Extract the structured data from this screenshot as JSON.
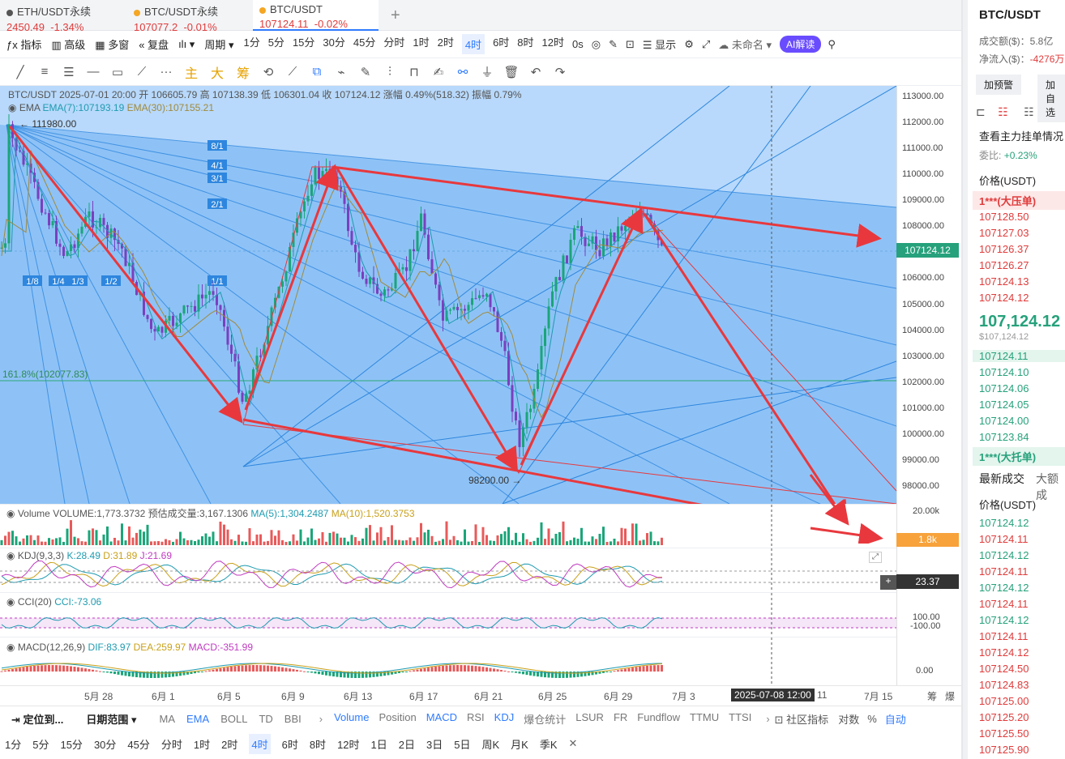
{
  "tabs": [
    {
      "name": "ETH/USDT永续",
      "price": "2450.49",
      "change": "-1.34%"
    },
    {
      "name": "BTC/USDT永续",
      "price": "107077.2",
      "change": "-0.01%"
    },
    {
      "name": "BTC/USDT",
      "price": "107124.11",
      "change": "-0.02%"
    }
  ],
  "toolbar": {
    "indicator": "指标",
    "advanced": "高级",
    "multi": "多窗",
    "replay": "复盘",
    "period": "周期",
    "tf": [
      "1分",
      "5分",
      "15分",
      "30分",
      "45分",
      "分时",
      "1时",
      "2时",
      "4时",
      "6时",
      "8时",
      "12时"
    ],
    "selected_tf": "4时",
    "zero": "0s",
    "display": "显示",
    "unnamed": "未命名",
    "ai": "AI解读"
  },
  "drawbar": {
    "main": "主",
    "big": "大",
    "chip": "筹"
  },
  "chart": {
    "header": "BTC/USDT  2025-07-01 20:00  开 106605.79  高 107138.39  低 106301.04  收 107124.12  涨幅 0.49%(518.32)  振幅 0.79%",
    "ema_label": "EMA",
    "ema7": "EMA(7):107193.19",
    "ema30": "EMA(30):107155.21",
    "high_mark": "← 111980.00",
    "low_mark": "98200.00 →",
    "fib": "161.8%(102077.83)",
    "gann": [
      "8/1",
      "4/1",
      "3/1",
      "2/1",
      "1/1",
      "1/2",
      "1/3",
      "1/4",
      "1/8"
    ],
    "price_labels": [
      "113000.00",
      "112000.00",
      "111000.00",
      "110000.00",
      "109000.00",
      "108000.00",
      "107000.00",
      "106000.00",
      "105000.00",
      "104000.00",
      "103000.00",
      "102000.00",
      "101000.00",
      "100000.00",
      "99000.00",
      "98000.00"
    ],
    "current_price": "107124.12"
  },
  "volume": {
    "label": "Volume",
    "v": "VOLUME:1,773.3732",
    "est": "预估成交量:3,167.1306",
    "ma5": "MA(5):1,304.2487",
    "ma10": "MA(10):1,520.3753",
    "scale": "20.00k",
    "tag": "1.8k"
  },
  "kdj": {
    "label": "KDJ(9,3,3)",
    "k": "K:28.49",
    "d": "D:31.89",
    "j": "J:21.69",
    "tag": "23.37"
  },
  "cci": {
    "label": "CCI(20)",
    "v": "CCI:-73.06",
    "up": "100.00",
    "down": "-100.00"
  },
  "macd": {
    "label": "MACD(12,26,9)",
    "dif": "DIF:83.97",
    "dea": "DEA:259.97",
    "macd": "MACD:-351.99",
    "zero": "0.00"
  },
  "time_labels": [
    "5月 28",
    "6月 1",
    "6月 5",
    "6月 9",
    "6月 13",
    "6月 17",
    "6月 21",
    "6月 25",
    "6月 29",
    "7月 3",
    "11",
    "7月 15"
  ],
  "cursor_time": "2025-07-08 12:00",
  "time_right": [
    "筹",
    "爆"
  ],
  "bottom1": {
    "locate": "定位到...",
    "range": "日期范围",
    "main_ind": [
      "MA",
      "EMA",
      "BOLL",
      "TD",
      "BBI"
    ],
    "sub_ind": [
      "Volume",
      "Position",
      "MACD",
      "RSI",
      "KDJ",
      "爆仓统计",
      "LSUR",
      "FR",
      "Fundflow",
      "TTMU",
      "TTSI"
    ],
    "community": "社区指标",
    "log": "对数",
    "pct": "%",
    "auto": "自动"
  },
  "bottom2": [
    "1分",
    "5分",
    "15分",
    "30分",
    "45分",
    "分时",
    "1时",
    "2时",
    "4时",
    "6时",
    "8时",
    "12时",
    "1日",
    "2日",
    "3日",
    "5日",
    "周K",
    "月K",
    "季K"
  ],
  "bottom2_sel": "4时",
  "right": {
    "symbol": "BTC/USDT",
    "vol_label": "成交额($)：",
    "vol": "5.8亿",
    "inflow_label": "净流入($)：",
    "inflow": "-4276万",
    "alert": "加预警",
    "watch": "加自选",
    "see": "查看主力挂单情况",
    "ratio_label": "委比:",
    "ratio": "+0.23%",
    "price_hdr": "价格(USDT)",
    "ask_big": "1***(大压单)",
    "asks": [
      "107128.50",
      "107127.03",
      "107126.37",
      "107126.27",
      "107124.13",
      "107124.12"
    ],
    "last": "107,124.12",
    "last_usd": "$107,124.12",
    "bids": [
      "107124.11",
      "107124.10",
      "107124.06",
      "107124.05",
      "107124.00",
      "107123.84"
    ],
    "bid_big": "1***(大托单)",
    "trades_tab": "最新成交",
    "big_tab": "大额成",
    "trades_hdr": "价格(USDT)",
    "trades": [
      {
        "p": "107124.12",
        "c": "g"
      },
      {
        "p": "107124.11",
        "c": "r"
      },
      {
        "p": "107124.12",
        "c": "g"
      },
      {
        "p": "107124.11",
        "c": "r"
      },
      {
        "p": "107124.12",
        "c": "g"
      },
      {
        "p": "107124.11",
        "c": "r"
      },
      {
        "p": "107124.12",
        "c": "g"
      },
      {
        "p": "107124.11",
        "c": "r"
      },
      {
        "p": "107124.12",
        "c": "r"
      },
      {
        "p": "107124.50",
        "c": "r"
      },
      {
        "p": "107124.83",
        "c": "r"
      },
      {
        "p": "107125.00",
        "c": "r"
      },
      {
        "p": "107125.20",
        "c": "r"
      },
      {
        "p": "107125.50",
        "c": "r"
      },
      {
        "p": "107125.90",
        "c": "r"
      }
    ]
  },
  "colors": {
    "accent": "#2f7bff",
    "up": "#26a17b",
    "down": "#e03b3b",
    "chartbg": "#9fcbf8",
    "arrow": "#e8383d"
  }
}
